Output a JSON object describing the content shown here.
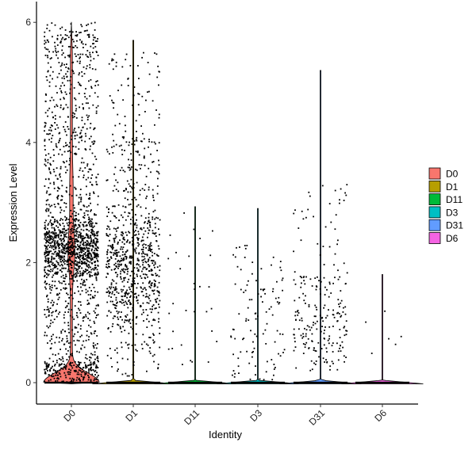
{
  "chart_data": {
    "type": "violin",
    "xlabel": "Identity",
    "ylabel": "Expression Level",
    "categories": [
      "D0",
      "D1",
      "D11",
      "D3",
      "D31",
      "D6"
    ],
    "ylim": [
      -0.35,
      6.3
    ],
    "yticks": [
      0,
      2,
      4,
      6
    ],
    "grid": false,
    "legend": {
      "position": "right",
      "entries": [
        {
          "label": "D0",
          "color": "#F8766D"
        },
        {
          "label": "D1",
          "color": "#B79F00"
        },
        {
          "label": "D11",
          "color": "#00BA38"
        },
        {
          "label": "D3",
          "color": "#00BFC4"
        },
        {
          "label": "D31",
          "color": "#619CFF"
        },
        {
          "label": "D6",
          "color": "#F564E3"
        }
      ]
    },
    "series": [
      {
        "name": "D0",
        "color": "#F8766D",
        "violin_max": 6.0,
        "n_nonzero_points": 2000,
        "dense_band": [
          1.8,
          2.7
        ],
        "zero_fraction": "moderate"
      },
      {
        "name": "D1",
        "color": "#B79F00",
        "violin_max": 5.7,
        "n_nonzero_points": 900,
        "dense_band": [
          1.2,
          2.6
        ],
        "zero_fraction": "high"
      },
      {
        "name": "D11",
        "color": "#00BA38",
        "violin_max": 2.93,
        "n_nonzero_points": 30,
        "dense_band": [
          0.1,
          1.5
        ],
        "zero_fraction": "very high"
      },
      {
        "name": "D3",
        "color": "#00BFC4",
        "violin_max": 2.9,
        "n_nonzero_points": 110,
        "dense_band": [
          0.2,
          2.0
        ],
        "zero_fraction": "very high"
      },
      {
        "name": "D31",
        "color": "#619CFF",
        "violin_max": 5.2,
        "n_nonzero_points": 230,
        "dense_band": [
          0.3,
          2.6
        ],
        "zero_fraction": "very high"
      },
      {
        "name": "D6",
        "color": "#F564E3",
        "violin_max": 1.8,
        "n_nonzero_points": 6,
        "dense_band": [
          0.3,
          1.3
        ],
        "zero_fraction": "very high"
      }
    ]
  }
}
